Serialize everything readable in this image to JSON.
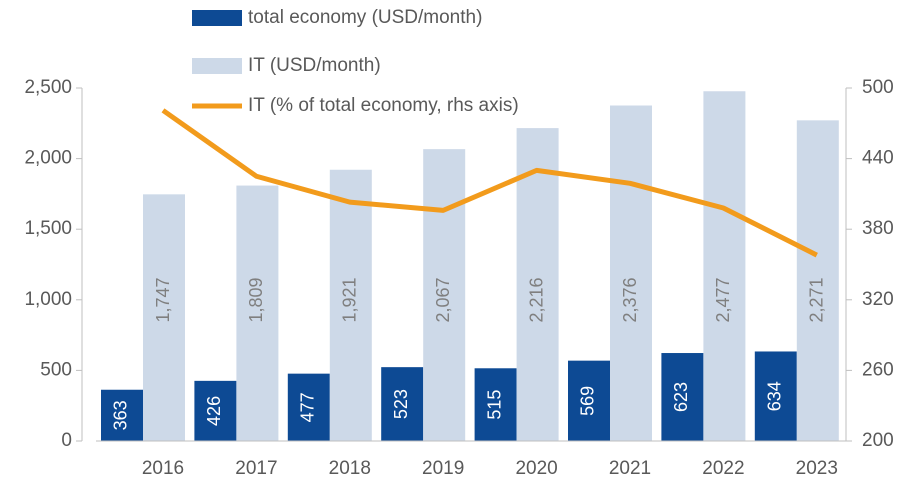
{
  "chart_data": {
    "type": "bar",
    "categories": [
      "2016",
      "2017",
      "2018",
      "2019",
      "2020",
      "2021",
      "2022",
      "2023"
    ],
    "series": [
      {
        "name": "total economy (USD/month)",
        "color": "#0d4a94",
        "values": [
          363,
          426,
          477,
          523,
          515,
          569,
          623,
          634
        ],
        "value_labels": [
          "363",
          "426",
          "477",
          "523",
          "515",
          "569",
          "623",
          "634"
        ]
      },
      {
        "name": "IT (USD/month)",
        "color": "#cdd9e8",
        "values": [
          1747,
          1809,
          1921,
          2067,
          2216,
          2376,
          2477,
          2271
        ],
        "value_labels": [
          "1,747",
          "1,809",
          "1,921",
          "2,067",
          "2,216",
          "2,376",
          "2,477",
          "2,271"
        ]
      },
      {
        "name": "IT (% of total economy, rhs axis)",
        "color": "#f29b1c",
        "type": "line",
        "axis": "y2",
        "values": [
          481,
          425,
          403,
          396,
          430,
          419,
          398,
          358
        ]
      }
    ],
    "ylim": [
      0,
      2500
    ],
    "yticks": [
      0,
      500,
      {
        "value": 1000,
        "label": "1,000"
      },
      {
        "value": 1500,
        "label": "1,500"
      },
      {
        "value": 2000,
        "label": "2,000"
      },
      {
        "value": 2500,
        "label": "2,500"
      }
    ],
    "y2lim": [
      200,
      500
    ],
    "y2ticks": [
      200,
      260,
      320,
      380,
      440,
      500
    ]
  }
}
